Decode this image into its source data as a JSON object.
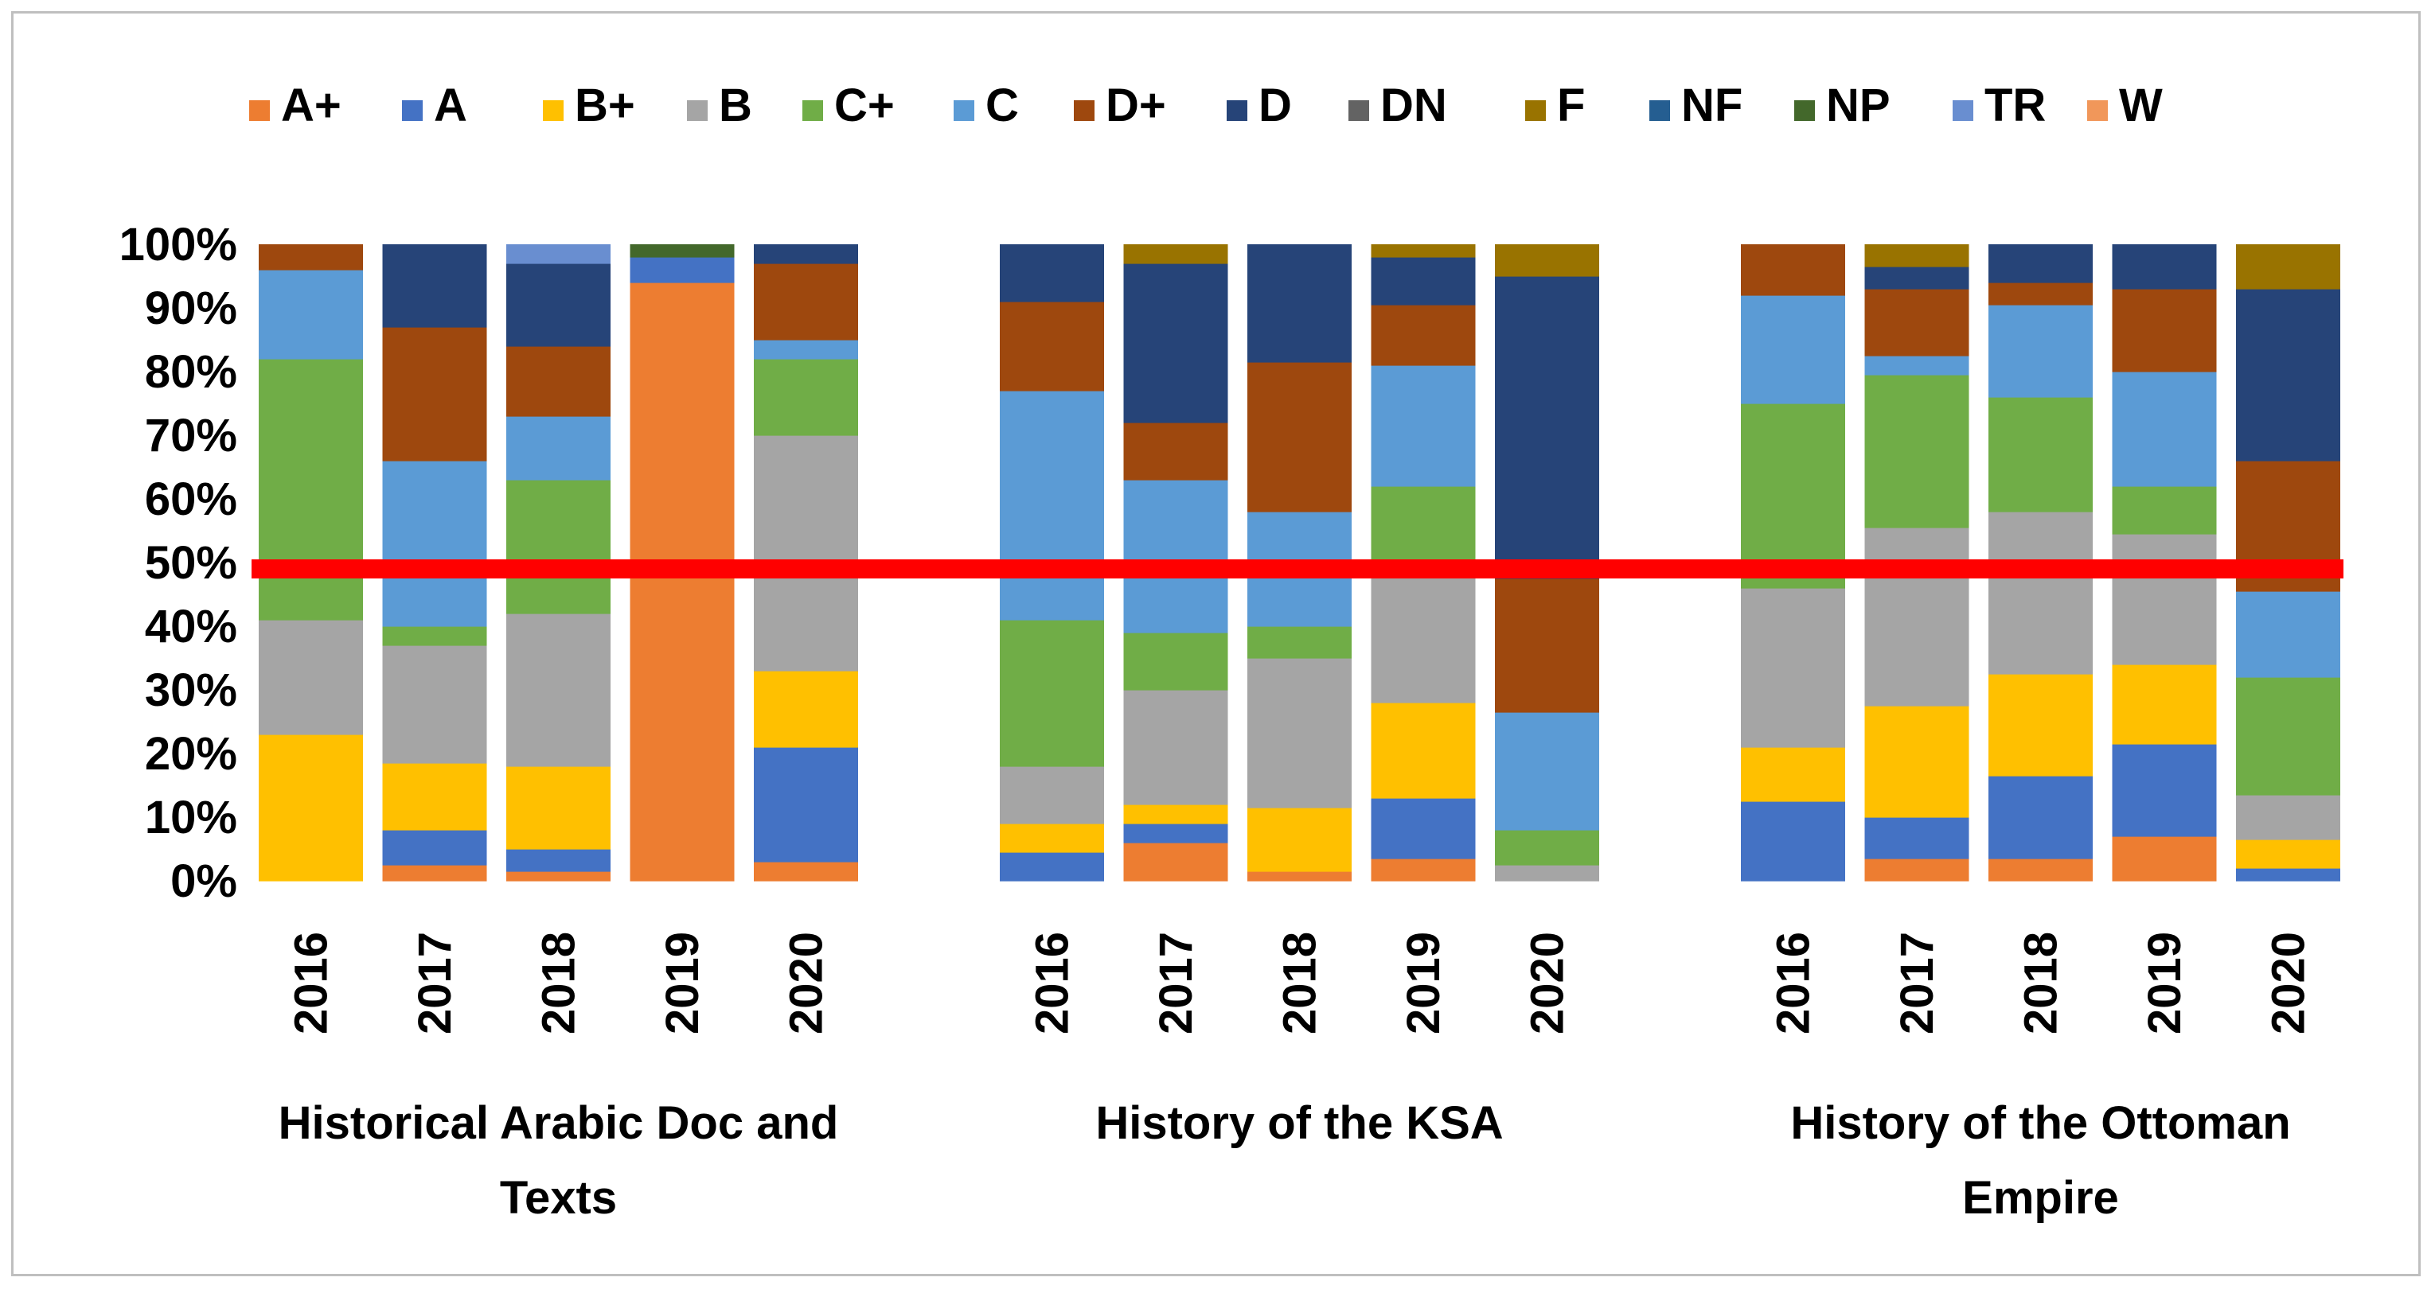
{
  "chart_data": {
    "type": "bar",
    "stacked": "percent",
    "grades": [
      "A+",
      "A",
      "B+",
      "B",
      "C+",
      "C",
      "D+",
      "D",
      "DN",
      "F",
      "NF",
      "NP",
      "TR",
      "W"
    ],
    "colors": {
      "A+": "#ED7D31",
      "A": "#4472C4",
      "B+": "#FFC000",
      "B": "#A5A5A5",
      "C+": "#70AD47",
      "C": "#5B9BD5",
      "D+": "#9E480E",
      "D": "#264478",
      "DN": "#636363",
      "F": "#997300",
      "NF": "#255E91",
      "NP": "#43682B",
      "TR": "#698ED0",
      "W": "#F1975A"
    },
    "yaxis": {
      "min": 0,
      "max": 100,
      "step": 10,
      "tick_labels": [
        "0%",
        "10%",
        "20%",
        "30%",
        "40%",
        "50%",
        "60%",
        "70%",
        "80%",
        "90%",
        "100%"
      ]
    },
    "threshold": {
      "value": 49,
      "color": "#FF0000"
    },
    "legend_position": "top",
    "groups": [
      {
        "name": "Historical Arabic Doc and Texts",
        "name_lines": [
          "Historical Arabic Doc and",
          "Texts"
        ],
        "bars": [
          {
            "year": "2016",
            "values": {
              "B+": 23,
              "B": 18,
              "C+": 41,
              "C": 14,
              "D+": 4
            }
          },
          {
            "year": "2017",
            "values": {
              "A+": 2.5,
              "A": 5.5,
              "B+": 10.5,
              "B": 18.5,
              "C+": 3,
              "C": 26,
              "D+": 21,
              "D": 13
            }
          },
          {
            "year": "2018",
            "values": {
              "A+": 1.5,
              "A": 3.5,
              "B+": 13,
              "B": 24,
              "C+": 21,
              "C": 10,
              "D+": 11,
              "D": 13,
              "TR": 3
            }
          },
          {
            "year": "2019",
            "values": {
              "A+": 94,
              "A": 4,
              "NP": 2
            }
          },
          {
            "year": "2020",
            "values": {
              "A+": 3,
              "A": 18,
              "B+": 12,
              "B": 37,
              "C+": 12,
              "C": 3,
              "D+": 12,
              "D": 3
            }
          }
        ]
      },
      {
        "name": "History of the KSA",
        "name_lines": [
          "History of the KSA"
        ],
        "bars": [
          {
            "year": "2016",
            "values": {
              "A": 4.5,
              "B+": 4.5,
              "B": 9,
              "C+": 23,
              "C": 36,
              "D+": 14,
              "D": 9
            }
          },
          {
            "year": "2017",
            "values": {
              "A+": 6,
              "A": 3,
              "B+": 3,
              "B": 18,
              "C+": 9,
              "C": 24,
              "D+": 9,
              "D": 25,
              "F": 3
            }
          },
          {
            "year": "2018",
            "values": {
              "A+": 1.5,
              "B+": 10,
              "B": 23.5,
              "C+": 5,
              "C": 18,
              "D+": 23.5,
              "D": 18.5
            }
          },
          {
            "year": "2019",
            "values": {
              "A+": 3.5,
              "A": 9.5,
              "B+": 15,
              "B": 20,
              "C+": 14,
              "C": 19,
              "D+": 9.5,
              "D": 7.5,
              "F": 2
            }
          },
          {
            "year": "2020",
            "values": {
              "B": 2.5,
              "C+": 5.5,
              "C": 18.5,
              "D+": 21,
              "D": 47.5,
              "F": 5
            }
          }
        ]
      },
      {
        "name": "History of the Ottoman Empire",
        "name_lines": [
          "History of the Ottoman",
          "Empire"
        ],
        "bars": [
          {
            "year": "2016",
            "values": {
              "A": 12.5,
              "B+": 8.5,
              "B": 25,
              "C+": 29,
              "C": 17,
              "D+": 8
            }
          },
          {
            "year": "2017",
            "values": {
              "A+": 3.5,
              "A": 6.5,
              "B+": 17.5,
              "B": 28,
              "C+": 24,
              "C": 3,
              "D+": 10.5,
              "D": 3.5,
              "F": 3.5
            }
          },
          {
            "year": "2018",
            "values": {
              "A+": 3.5,
              "A": 13,
              "B+": 16,
              "B": 25.5,
              "C+": 18,
              "C": 14.5,
              "D+": 3.5,
              "D": 6
            }
          },
          {
            "year": "2019",
            "values": {
              "A+": 7,
              "A": 14.5,
              "B+": 12.5,
              "B": 20.5,
              "C+": 7.5,
              "C": 18,
              "D+": 13,
              "D": 7
            }
          },
          {
            "year": "2020",
            "values": {
              "A": 2,
              "B+": 4.5,
              "B": 7,
              "C+": 18.5,
              "C": 13.5,
              "D+": 20.5,
              "D": 27,
              "F": 7
            }
          }
        ]
      }
    ]
  }
}
